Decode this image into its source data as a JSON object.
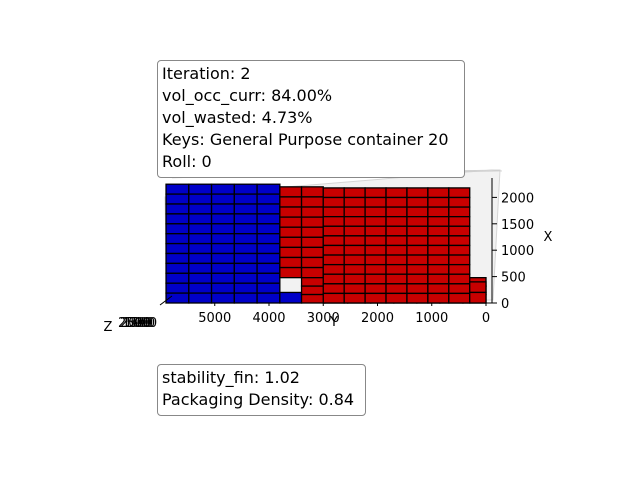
{
  "info_top": {
    "iteration": "Iteration: 2",
    "vol_occ_curr": "vol_occ_curr: 84.00%",
    "vol_wasted": "vol_wasted: 4.73%",
    "keys": "Keys: General Purpose container 20",
    "roll": "Roll: 0"
  },
  "info_bottom": {
    "stability_fin": "stability_fin: 1.02",
    "packaging_density": "Packaging Density: 0.84"
  },
  "colors": {
    "box_blue": "#0000c8",
    "box_red": "#c80000",
    "edge": "#000000"
  },
  "chart_data": {
    "type": "3d-bar",
    "view": "container packing, viewed along Z axis",
    "y_axis": {
      "label": "Y",
      "ticks": [
        5000,
        4000,
        3000,
        2000,
        1000,
        0
      ],
      "range": [
        5898,
        0
      ]
    },
    "x_axis": {
      "label": "X",
      "ticks": [
        0,
        500,
        1000,
        1500,
        2000
      ],
      "range": [
        0,
        2352
      ]
    },
    "z_axis": {
      "label": "Z",
      "ticks": [
        2500,
        2000,
        1500,
        1000,
        500
      ]
    },
    "series": [
      {
        "name": "blue",
        "color": "#0000c8",
        "blocks": [
          {
            "y_range": [
              5898,
              3800
            ],
            "x_range": [
              0,
              2250
            ]
          },
          {
            "y_range": [
              3800,
              3400
            ],
            "x_range": [
              0,
              200
            ]
          }
        ]
      },
      {
        "name": "red",
        "color": "#c80000",
        "blocks": [
          {
            "y_range": [
              3800,
              3000
            ],
            "x_range": [
              480,
              2200
            ]
          },
          {
            "y_range": [
              3400,
              0
            ],
            "x_range": [
              0,
              480
            ]
          },
          {
            "y_range": [
              3000,
              300
            ],
            "x_range": [
              0,
              2180
            ]
          },
          {
            "y_range": [
              300,
              0
            ],
            "x_range": [
              0,
              400
            ]
          }
        ]
      }
    ]
  }
}
